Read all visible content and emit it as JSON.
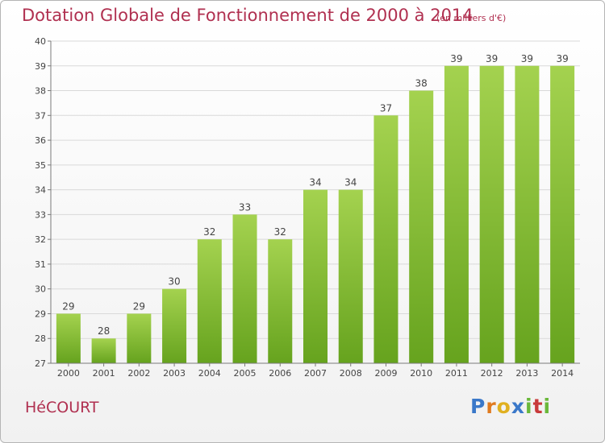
{
  "header": {
    "title": "Dotation Globale de Fonctionnement de 2000 à 2014",
    "subtitle": "(en milliers d'€)"
  },
  "footer": {
    "commune": "HéCOURT",
    "logo_letters": [
      {
        "char": "P",
        "color": "#3a78c9"
      },
      {
        "char": "r",
        "color": "#e07a1f"
      },
      {
        "char": "o",
        "color": "#e0b020"
      },
      {
        "char": "x",
        "color": "#3a78c9"
      },
      {
        "char": "i",
        "color": "#6ab83a"
      },
      {
        "char": "t",
        "color": "#c83a3a"
      },
      {
        "char": "i",
        "color": "#6ab83a"
      }
    ]
  },
  "colors": {
    "bar_light": "#a4d24f",
    "bar_dark": "#66a31e",
    "grid": "#d9d9d9",
    "axis": "#7a7a7a",
    "title": "#b03050"
  },
  "chart_data": {
    "type": "bar",
    "title": "Dotation Globale de Fonctionnement de 2000 à 2014",
    "subtitle": "(en milliers d'€)",
    "xlabel": "",
    "ylabel": "",
    "categories": [
      "2000",
      "2001",
      "2002",
      "2003",
      "2004",
      "2005",
      "2006",
      "2007",
      "2008",
      "2009",
      "2010",
      "2011",
      "2012",
      "2013",
      "2014"
    ],
    "values": [
      29,
      28,
      29,
      30,
      32,
      33,
      32,
      34,
      34,
      37,
      38,
      39,
      39,
      39,
      39
    ],
    "ylim": [
      27,
      40
    ],
    "yticks": [
      27,
      28,
      29,
      30,
      31,
      32,
      33,
      34,
      35,
      36,
      37,
      38,
      39,
      40
    ],
    "grid": true,
    "legend": "none"
  }
}
